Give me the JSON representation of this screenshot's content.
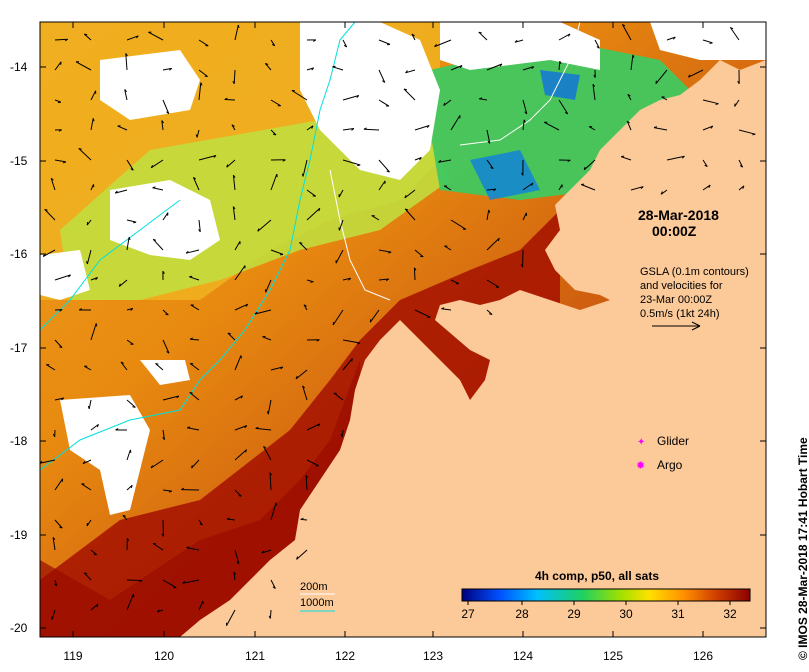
{
  "map": {
    "date_line": "28-Mar-2018",
    "time_line": "00:00Z",
    "gsla_lines": [
      "GSLA (0.1m contours)",
      "and velocities for",
      "23-Mar 00:00Z",
      "0.5m/s (1kt 24h)"
    ],
    "lat_ticks": [
      "-14",
      "-15",
      "-16",
      "-17",
      "-18",
      "-19",
      "-20"
    ],
    "lon_ticks": [
      "119",
      "120",
      "121",
      "122",
      "123",
      "124",
      "125",
      "126"
    ],
    "legend": {
      "glider": "Glider",
      "argo": "Argo",
      "glider_color": "#ff00ff",
      "argo_color": "#ff00ff"
    },
    "bathymetry": {
      "line200": "200m",
      "line1000": "1000m",
      "color_200": "#ffffff",
      "color_1000": "#00e0e0"
    },
    "colorbar": {
      "title": "4h comp, p50, all sats",
      "labels": [
        "27",
        "28",
        "29",
        "30",
        "31",
        "32"
      ],
      "colors": [
        "#000080",
        "#0050ff",
        "#00c0ff",
        "#20d060",
        "#a0e000",
        "#ffe000",
        "#ff9000",
        "#d04000",
        "#8b0000"
      ]
    },
    "credit": "© IMOS 28-Mar-2018 17:41 Hobart Time",
    "land_color": "#fcc999"
  }
}
